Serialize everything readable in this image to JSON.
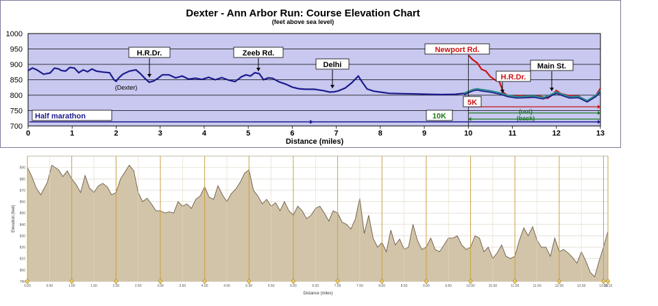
{
  "chart_data": [
    {
      "type": "line",
      "title": "Dexter - Ann Arbor Run:  Course Elevation Chart",
      "subtitle": "(feet above sea level)",
      "xlabel": "Distance (miles)",
      "ylabel": "",
      "xlim": [
        0,
        13
      ],
      "ylim": [
        700,
        1000
      ],
      "x_ticks": [
        "0",
        "1",
        "2",
        "3",
        "4",
        "5",
        "6",
        "7",
        "8",
        "9",
        "10",
        "11",
        "12",
        "13"
      ],
      "y_ticks": [
        "700",
        "750",
        "800",
        "850",
        "900",
        "950",
        "1000"
      ],
      "grid": true,
      "series": [
        {
          "name": "",
          "color": "#1a1a8c",
          "x": [
            0,
            0.1,
            0.2,
            0.35,
            0.5,
            0.6,
            0.7,
            0.75,
            0.85,
            0.95,
            1.05,
            1.15,
            1.25,
            1.35,
            1.45,
            1.55,
            1.7,
            1.85,
            1.95,
            2.0,
            2.05,
            2.15,
            2.3,
            2.45,
            2.55,
            2.65,
            2.75,
            2.85,
            2.95,
            3.05,
            3.2,
            3.35,
            3.5,
            3.65,
            3.8,
            3.95,
            4.1,
            4.25,
            4.4,
            4.55,
            4.7,
            4.85,
            4.95,
            5.05,
            5.15,
            5.25,
            5.35,
            5.45,
            5.55,
            5.7,
            5.85,
            6.0,
            6.15,
            6.3,
            6.5,
            6.7,
            6.85,
            6.95,
            7.05,
            7.2,
            7.35,
            7.5,
            7.6,
            7.7,
            7.85,
            8.0,
            8.2,
            8.5,
            8.8,
            9.1,
            9.4,
            9.7,
            9.9,
            10.0
          ],
          "y": [
            880,
            888,
            882,
            868,
            872,
            888,
            885,
            880,
            878,
            890,
            888,
            873,
            882,
            876,
            885,
            878,
            875,
            873,
            850,
            845,
            855,
            868,
            878,
            882,
            870,
            855,
            842,
            846,
            855,
            866,
            866,
            856,
            862,
            852,
            855,
            851,
            858,
            850,
            857,
            849,
            844,
            860,
            866,
            862,
            873,
            870,
            850,
            856,
            855,
            843,
            836,
            826,
            821,
            819,
            819,
            815,
            810,
            811,
            814,
            823,
            840,
            862,
            840,
            820,
            813,
            810,
            806,
            805,
            804,
            803,
            802,
            803,
            806,
            808
          ]
        },
        {
          "name": "",
          "color": "#cc1111",
          "x": [
            10.0,
            10.1,
            10.2,
            10.3,
            10.4,
            10.5,
            10.6,
            10.7,
            10.8,
            10.9,
            11.0,
            11.2,
            11.4,
            11.6,
            11.8,
            11.9,
            12.0,
            12.1,
            12.3,
            12.5,
            12.7,
            12.9,
            13.0
          ],
          "y": [
            930,
            915,
            905,
            884,
            878,
            860,
            850,
            845,
            808,
            798,
            797,
            798,
            795,
            797,
            790,
            800,
            815,
            805,
            798,
            797,
            780,
            800,
            822
          ]
        },
        {
          "name": "",
          "color": "#2a8a8a",
          "x": [
            9.9,
            10.0,
            10.1,
            10.2,
            10.3,
            10.5,
            10.7,
            10.9,
            11.1,
            11.3,
            11.5,
            11.7,
            11.85,
            12.0,
            12.15,
            12.3,
            12.5,
            12.7,
            12.9,
            13.0
          ],
          "y": [
            806,
            812,
            818,
            821,
            818,
            814,
            808,
            799,
            795,
            796,
            797,
            792,
            800,
            810,
            802,
            795,
            796,
            782,
            800,
            815
          ]
        }
      ],
      "annotations": [
        "H.R.Dr.",
        "(Dexter)",
        "Zeeb Rd.",
        "Delhi",
        "Newport Rd.",
        "H.R.Dr.",
        "Main St.",
        "5K",
        "(out)",
        "(back)",
        "10K",
        "Half marathon"
      ],
      "colors": {
        "plot_bg": "#c8c8f0",
        "grid": "#000000",
        "frame": "#7a7a9a",
        "halfmarathon": "#1a1a8c",
        "tenk": "#1a7a1a",
        "fivek": "#cc1111"
      }
    },
    {
      "type": "area",
      "title": "",
      "xlabel": "Distance (miles)",
      "ylabel": "Elevation (feet)",
      "xlim": [
        0,
        13.1
      ],
      "ylim": [
        790,
        900
      ],
      "x_ticks": [
        "0.00",
        "0.50",
        "1.00",
        "1.50",
        "2.00",
        "2.50",
        "3.00",
        "3.50",
        "4.00",
        "4.50",
        "5.00",
        "5.50",
        "6.00",
        "6.50",
        "7.00",
        "7.50",
        "8.00",
        "8.50",
        "9.00",
        "9.50",
        "10.00",
        "10.50",
        "11.00",
        "11.50",
        "12.00",
        "12.50",
        "13.00",
        "13.10"
      ],
      "y_ticks": [
        "790",
        "800",
        "810",
        "820",
        "830",
        "840",
        "850",
        "860",
        "870",
        "880",
        "890"
      ],
      "grid": true,
      "series": [
        {
          "name": "",
          "color": "#c8b89a",
          "x": [
            0,
            0.1,
            0.2,
            0.3,
            0.45,
            0.55,
            0.7,
            0.8,
            0.9,
            1.0,
            1.1,
            1.2,
            1.3,
            1.4,
            1.5,
            1.6,
            1.7,
            1.8,
            1.9,
            2.0,
            2.1,
            2.2,
            2.3,
            2.4,
            2.5,
            2.6,
            2.7,
            2.8,
            2.9,
            3.0,
            3.1,
            3.2,
            3.3,
            3.4,
            3.5,
            3.6,
            3.7,
            3.8,
            3.9,
            4.0,
            4.1,
            4.2,
            4.3,
            4.4,
            4.5,
            4.6,
            4.7,
            4.8,
            4.9,
            5.0,
            5.1,
            5.2,
            5.3,
            5.4,
            5.5,
            5.6,
            5.7,
            5.8,
            5.9,
            6.0,
            6.1,
            6.2,
            6.3,
            6.4,
            6.5,
            6.6,
            6.7,
            6.8,
            6.9,
            7.0,
            7.1,
            7.2,
            7.3,
            7.4,
            7.5,
            7.6,
            7.7,
            7.8,
            7.9,
            8.0,
            8.1,
            8.2,
            8.3,
            8.4,
            8.5,
            8.6,
            8.7,
            8.8,
            8.9,
            9.0,
            9.1,
            9.2,
            9.3,
            9.4,
            9.5,
            9.6,
            9.7,
            9.8,
            9.9,
            10.0,
            10.1,
            10.2,
            10.3,
            10.4,
            10.5,
            10.6,
            10.7,
            10.8,
            10.9,
            11.0,
            11.1,
            11.2,
            11.3,
            11.4,
            11.5,
            11.6,
            11.7,
            11.8,
            11.9,
            12.0,
            12.1,
            12.2,
            12.3,
            12.4,
            12.5,
            12.6,
            12.7,
            12.8,
            12.9,
            13.0,
            13.1
          ],
          "y": [
            890,
            882,
            872,
            866,
            877,
            892,
            888,
            882,
            887,
            880,
            875,
            868,
            883,
            872,
            868,
            874,
            876,
            873,
            866,
            868,
            880,
            886,
            892,
            887,
            868,
            860,
            863,
            858,
            852,
            852,
            850,
            851,
            850,
            860,
            856,
            858,
            854,
            862,
            865,
            873,
            864,
            862,
            874,
            866,
            860,
            867,
            871,
            877,
            885,
            888,
            870,
            865,
            858,
            862,
            856,
            859,
            852,
            860,
            852,
            848,
            856,
            852,
            845,
            848,
            854,
            856,
            850,
            843,
            852,
            850,
            842,
            840,
            836,
            845,
            863,
            832,
            848,
            828,
            820,
            824,
            816,
            835,
            822,
            827,
            818,
            820,
            840,
            826,
            818,
            820,
            828,
            818,
            816,
            822,
            828,
            828,
            830,
            822,
            818,
            820,
            830,
            828,
            816,
            820,
            810,
            815,
            822,
            812,
            810,
            812,
            826,
            837,
            830,
            838,
            826,
            820,
            820,
            812,
            828,
            816,
            818,
            815,
            811,
            806,
            816,
            808,
            798,
            794,
            808,
            820,
            834
          ]
        }
      ],
      "colors": {
        "fill": "#d2c4a8",
        "line": "#6a5a48",
        "tick_line": "#c8a040",
        "grid": "#d8d0c0"
      }
    }
  ]
}
